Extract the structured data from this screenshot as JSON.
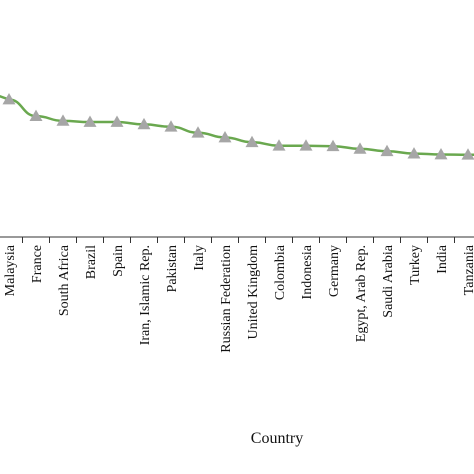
{
  "chart_data": {
    "type": "line",
    "title": "",
    "xlabel": "Country",
    "ylabel": "",
    "categories": [
      "Malaysia",
      "France",
      "South Africa",
      "Brazil",
      "Spain",
      "Iran, Islamic Rep.",
      "Pakistan",
      "Italy",
      "Russian Federation",
      "United Kingdom",
      "Colombia",
      "Indonesia",
      "Germany",
      "Egypt, Arab Rep.",
      "Saudi Arabia",
      "Turkey",
      "India",
      "Tanzania"
    ],
    "series": [
      {
        "values": [
          0.58,
          0.51,
          0.49,
          0.485,
          0.485,
          0.475,
          0.465,
          0.44,
          0.42,
          0.4,
          0.385,
          0.385,
          0.383,
          0.372,
          0.362,
          0.352,
          0.348,
          0.347
        ]
      }
    ],
    "ylim": [
      0,
      1
    ],
    "grid": false,
    "legend": "none",
    "colors": {
      "line": "#6aa84f",
      "marker": "#a6a6a6",
      "axis": "#333333"
    }
  }
}
